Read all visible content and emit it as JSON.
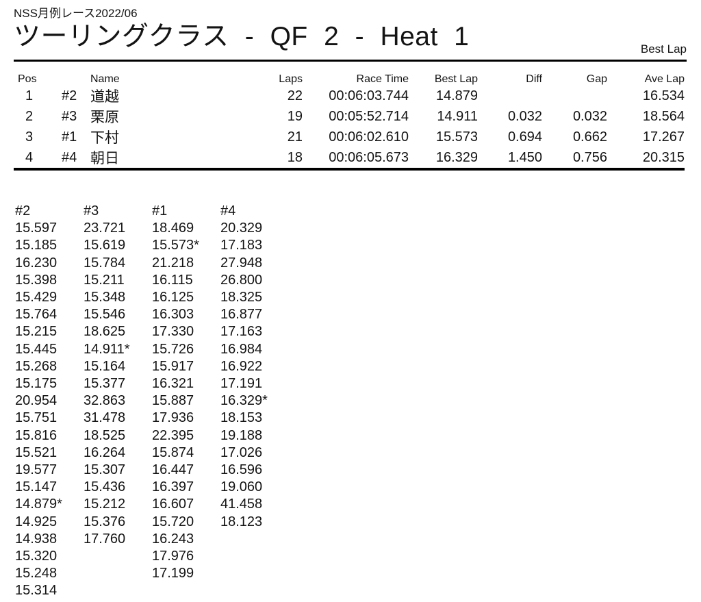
{
  "header": {
    "event": "NSS月例レース2022/06",
    "title": "ツーリングクラス - QF 2 - Heat 1",
    "corner_label": "Best Lap"
  },
  "results": {
    "columns": [
      "Pos",
      "Name",
      "Laps",
      "Race Time",
      "Best Lap",
      "Diff",
      "Gap",
      "Ave Lap"
    ],
    "rows": [
      {
        "pos": "1",
        "car": "#2",
        "name": "道越",
        "laps": "22",
        "race_time": "00:06:03.744",
        "best_lap": "14.879",
        "diff": "",
        "gap": "",
        "ave_lap": "16.534"
      },
      {
        "pos": "2",
        "car": "#3",
        "name": "栗原",
        "laps": "19",
        "race_time": "00:05:52.714",
        "best_lap": "14.911",
        "diff": "0.032",
        "gap": "0.032",
        "ave_lap": "18.564"
      },
      {
        "pos": "3",
        "car": "#1",
        "name": "下村",
        "laps": "21",
        "race_time": "00:06:02.610",
        "best_lap": "15.573",
        "diff": "0.694",
        "gap": "0.662",
        "ave_lap": "17.267"
      },
      {
        "pos": "4",
        "car": "#4",
        "name": "朝日",
        "laps": "18",
        "race_time": "00:06:05.673",
        "best_lap": "16.329",
        "diff": "1.450",
        "gap": "0.756",
        "ave_lap": "20.315"
      }
    ]
  },
  "lap_chart": {
    "columns": [
      {
        "header": "#2",
        "laps": [
          "15.597",
          "15.185",
          "16.230",
          "15.398",
          "15.429",
          "15.764",
          "15.215",
          "15.445",
          "15.268",
          "15.175",
          "20.954",
          "15.751",
          "15.816",
          "15.521",
          "19.577",
          "15.147",
          "14.879*",
          "14.925",
          "14.938",
          "15.320",
          "15.248",
          "15.314"
        ]
      },
      {
        "header": "#3",
        "laps": [
          "23.721",
          "15.619",
          "15.784",
          "15.211",
          "15.348",
          "15.546",
          "18.625",
          "14.911*",
          "15.164",
          "15.377",
          "32.863",
          "31.478",
          "18.525",
          "16.264",
          "15.307",
          "15.436",
          "15.212",
          "15.376",
          "17.760"
        ]
      },
      {
        "header": "#1",
        "laps": [
          "18.469",
          "15.573*",
          "21.218",
          "16.115",
          "16.125",
          "16.303",
          "17.330",
          "15.726",
          "15.917",
          "16.321",
          "15.887",
          "17.936",
          "22.395",
          "15.874",
          "16.447",
          "16.397",
          "16.607",
          "15.720",
          "16.243",
          "17.976",
          "17.199"
        ]
      },
      {
        "header": "#4",
        "laps": [
          "20.329",
          "17.183",
          "27.948",
          "26.800",
          "18.325",
          "16.877",
          "17.163",
          "16.984",
          "16.922",
          "17.191",
          "16.329*",
          "18.153",
          "19.188",
          "17.026",
          "16.596",
          "19.060",
          "41.458",
          "18.123"
        ]
      }
    ]
  },
  "colors": {
    "text": "#141414",
    "rule": "#000000",
    "background": "#ffffff"
  }
}
